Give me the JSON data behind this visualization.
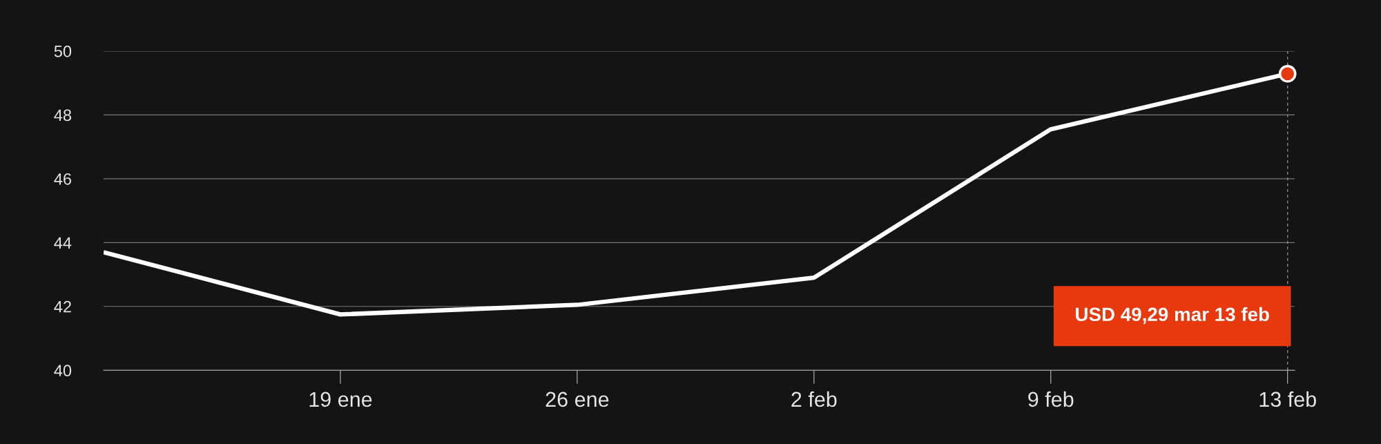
{
  "chart_data": {
    "type": "line",
    "categories": [
      null,
      "19 ene",
      "26 ene",
      "2 feb",
      "9 feb",
      "13 feb"
    ],
    "series": [
      {
        "color": "#ffffff",
        "values": [
          43.7,
          41.75,
          42.05,
          42.9,
          47.55,
          49.29
        ]
      }
    ],
    "ylim": [
      40,
      50
    ],
    "yticks": [
      40,
      42,
      44,
      46,
      48,
      50
    ],
    "grid": "y",
    "marker": "none",
    "line_style": "solid",
    "ref_lines": [
      {
        "axis": "x",
        "value": "13 feb",
        "color": "#888888",
        "line_style": "dashed"
      }
    ],
    "annotations": [
      "USD 49,29 mar 13 feb"
    ]
  }
}
